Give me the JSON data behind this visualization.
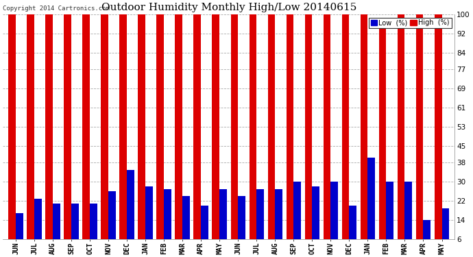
{
  "title": "Outdoor Humidity Monthly High/Low 20140615",
  "copyright": "Copyright 2014 Cartronics.com",
  "legend_low": "Low  (%)",
  "legend_high": "High  (%)",
  "months": [
    "JUN",
    "JUL",
    "AUG",
    "SEP",
    "OCT",
    "NOV",
    "DEC",
    "JAN",
    "FEB",
    "MAR",
    "APR",
    "MAY",
    "JUN",
    "JUL",
    "AUG",
    "SEP",
    "OCT",
    "NOV",
    "DEC",
    "JAN",
    "FEB",
    "MAR",
    "APR",
    "MAY"
  ],
  "high_values": [
    100,
    100,
    100,
    100,
    100,
    100,
    100,
    100,
    100,
    100,
    100,
    100,
    100,
    100,
    100,
    100,
    100,
    100,
    100,
    100,
    95,
    100,
    100,
    100
  ],
  "low_values": [
    17,
    23,
    21,
    21,
    21,
    26,
    35,
    28,
    27,
    24,
    20,
    27,
    24,
    27,
    27,
    30,
    28,
    30,
    20,
    40,
    30,
    30,
    14,
    19
  ],
  "bar_color_high": "#dd0000",
  "bar_color_low": "#0000cc",
  "background_color": "#ffffff",
  "yticks": [
    6,
    14,
    22,
    30,
    38,
    45,
    53,
    61,
    69,
    77,
    84,
    92,
    100
  ],
  "ylim_min": 6,
  "ylim_max": 100,
  "grid_color": "#aaaaaa",
  "title_fontsize": 11,
  "tick_fontsize": 7.5,
  "xlabel_fontsize": 7
}
